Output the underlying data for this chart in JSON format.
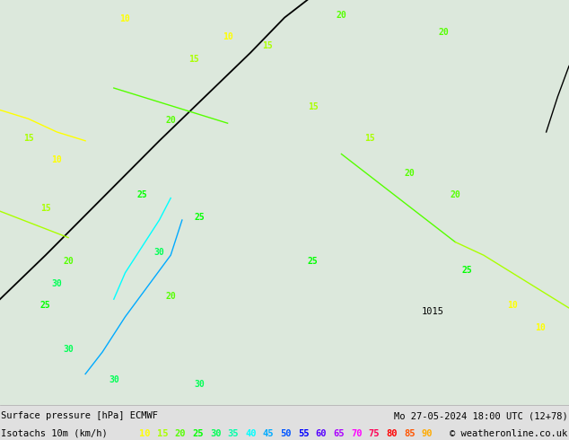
{
  "title_left": "Surface pressure [hPa] ECMWF",
  "title_right": "Mo 27-05-2024 18:00 UTC (12+78)",
  "legend_label": "Isotachs 10m (km/h)",
  "copyright": "© weatheronline.co.uk",
  "background_color": "#e0e0e0",
  "legend_values": [
    "10",
    "15",
    "20",
    "25",
    "30",
    "35",
    "40",
    "45",
    "50",
    "55",
    "60",
    "65",
    "70",
    "75",
    "80",
    "85",
    "90"
  ],
  "legend_colors": [
    "#ffff00",
    "#aaff00",
    "#55ff00",
    "#00ff00",
    "#00ff55",
    "#00ffaa",
    "#00ffff",
    "#00aaff",
    "#0055ff",
    "#0000ff",
    "#5500ff",
    "#aa00ff",
    "#ff00ff",
    "#ff0055",
    "#ff0000",
    "#ff5500",
    "#ffaa00"
  ],
  "figsize": [
    6.34,
    4.9
  ],
  "dpi": 100,
  "map_bg_color": "#dce8dc",
  "label_font_size": 7.5,
  "title_font_size": 7.5,
  "separator_color": "#aaaaaa"
}
